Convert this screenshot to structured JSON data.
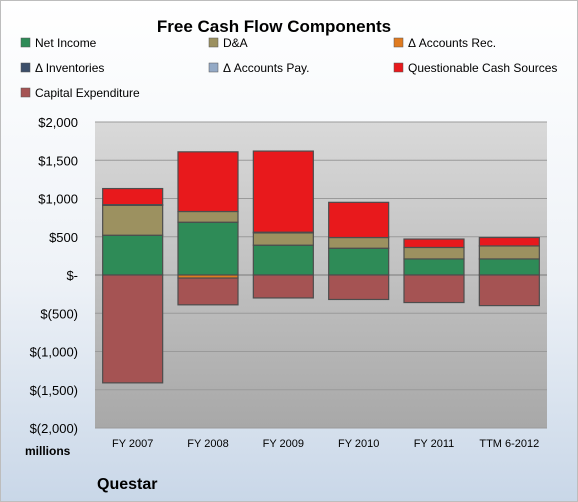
{
  "chart_data": {
    "type": "bar",
    "stacked": true,
    "title": "Free Cash Flow Components",
    "units_label": "millions",
    "footer_label": "Questar",
    "categories": [
      "FY 2007",
      "FY 2008",
      "FY 2009",
      "FY 2010",
      "FY 2011",
      "TTM 6-2012"
    ],
    "ylim": [
      -2000,
      2000
    ],
    "yticks": [
      2000,
      1500,
      1000,
      500,
      0,
      -500,
      -1000,
      -1500,
      -2000
    ],
    "ytick_labels": [
      "$2,000",
      "$1,500",
      "$1,000",
      "$500",
      "$-",
      "$(500)",
      "$(1,000)",
      "$(1,500)",
      "$(2,000)"
    ],
    "grid": true,
    "legend_position": "top",
    "series": [
      {
        "name": "Net Income",
        "color": "#2e8b57",
        "values": [
          520,
          690,
          390,
          350,
          210,
          210
        ]
      },
      {
        "name": "D&A",
        "color": "#9c9160",
        "values": [
          390,
          140,
          160,
          140,
          150,
          170
        ]
      },
      {
        "name": "Δ Accounts Rec.",
        "color": "#e07b20",
        "values": [
          0,
          -40,
          0,
          0,
          0,
          0
        ]
      },
      {
        "name": "Δ Inventories",
        "color": "#3c4f6a",
        "values": [
          10,
          0,
          0,
          0,
          0,
          0
        ]
      },
      {
        "name": "Δ Accounts Pay.",
        "color": "#94aac6",
        "values": [
          0,
          0,
          10,
          0,
          0,
          0
        ]
      },
      {
        "name": "Questionable Cash Sources",
        "color": "#e8191c",
        "values": [
          210,
          780,
          1060,
          460,
          110,
          110
        ]
      },
      {
        "name": "Capital Expenditure",
        "color": "#a55353",
        "values": [
          -1410,
          -350,
          -300,
          -320,
          -360,
          -400
        ]
      }
    ]
  }
}
